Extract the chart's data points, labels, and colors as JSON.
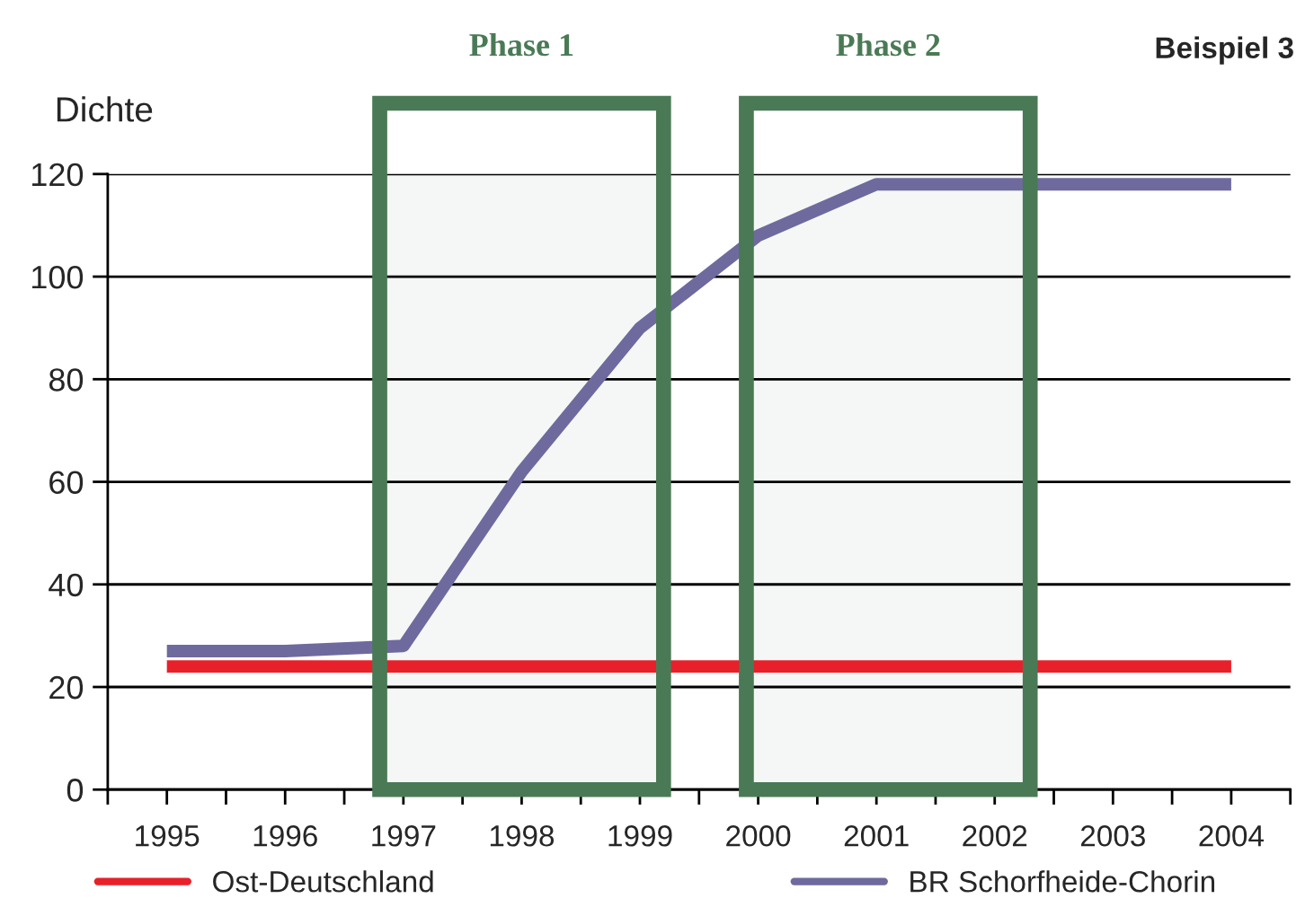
{
  "chart_data": {
    "type": "line",
    "title": "Beispiel 3",
    "ylabel": "Dichte",
    "x": [
      1995,
      1996,
      1997,
      1998,
      1999,
      2000,
      2001,
      2002,
      2003,
      2004
    ],
    "series": [
      {
        "name": "Ost-Deutschland",
        "color": "#e8202a",
        "values": [
          24,
          24,
          24,
          24,
          24,
          24,
          24,
          24,
          24,
          24
        ]
      },
      {
        "name": "BR Schorfheide-Chorin",
        "color": "#6e6a9e",
        "values": [
          27,
          27,
          28,
          62,
          90,
          108,
          118,
          118,
          118,
          118
        ]
      }
    ],
    "xlim": [
      1994.5,
      2004.5
    ],
    "xticks": [
      {
        "value": 1994.5,
        "label": null
      },
      {
        "value": 1995,
        "label": "1995"
      },
      {
        "value": 1995.5,
        "label": null
      },
      {
        "value": 1996,
        "label": "1996"
      },
      {
        "value": 1996.5,
        "label": null
      },
      {
        "value": 1997,
        "label": "1997"
      },
      {
        "value": 1997.5,
        "label": null
      },
      {
        "value": 1998,
        "label": "1998"
      },
      {
        "value": 1998.5,
        "label": null
      },
      {
        "value": 1999,
        "label": "1999"
      },
      {
        "value": 1999.5,
        "label": null
      },
      {
        "value": 2000,
        "label": "2000"
      },
      {
        "value": 2000.5,
        "label": null
      },
      {
        "value": 2001,
        "label": "2001"
      },
      {
        "value": 2001.5,
        "label": null
      },
      {
        "value": 2002,
        "label": "2002"
      },
      {
        "value": 2002.5,
        "label": null
      },
      {
        "value": 2003,
        "label": "2003"
      },
      {
        "value": 2003.5,
        "label": null
      },
      {
        "value": 2004,
        "label": "2004"
      },
      {
        "value": 2004.5,
        "label": null
      }
    ],
    "ylim": [
      0,
      120
    ],
    "yticks": [
      0,
      20,
      40,
      60,
      80,
      100,
      120
    ],
    "grid": "y",
    "legend": "bottom",
    "line_style": "solid",
    "bands": [
      {
        "axis": "x",
        "from": 1996.8,
        "to": 1999.2,
        "label": "Phase 1",
        "color": "#4a7a55"
      },
      {
        "axis": "x",
        "from": 1999.9,
        "to": 2002.3,
        "label": "Phase 2",
        "color": "#4a7a55"
      }
    ]
  }
}
